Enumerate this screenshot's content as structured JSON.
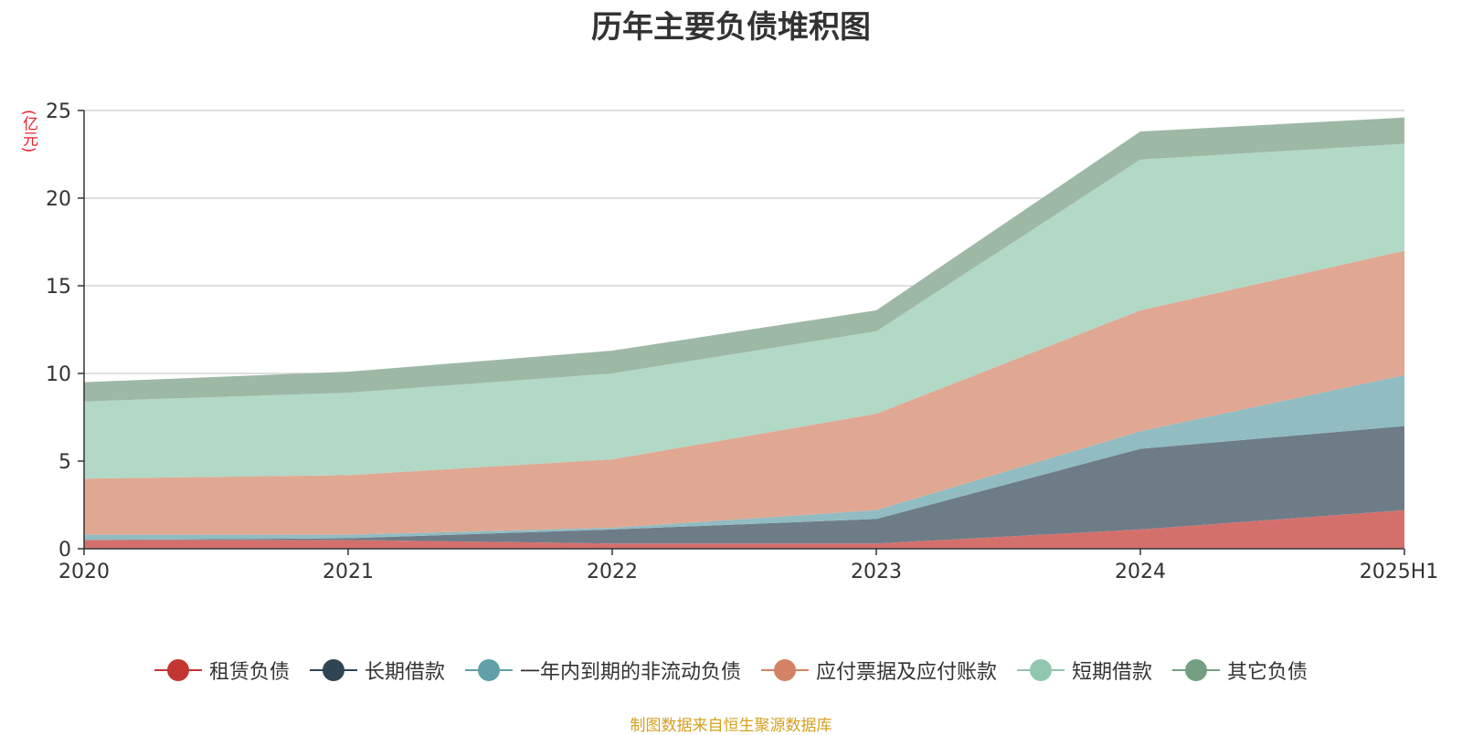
{
  "title": "历年主要负债堆积图",
  "unit": "(亿元)",
  "source": "制图数据来自恒生聚源数据库",
  "chart_data": {
    "type": "area",
    "stacked": true,
    "categories": [
      "2020",
      "2021",
      "2022",
      "2023",
      "2024",
      "2025H1"
    ],
    "ylim": [
      0,
      25
    ],
    "yticks": [
      "0",
      "5",
      "10",
      "15",
      "20",
      "25"
    ],
    "grid": true,
    "legend_position": "bottom",
    "series": [
      {
        "name": "租赁负债",
        "color": "#c23531",
        "fill": "#d4706c",
        "values": [
          0.5,
          0.5,
          0.3,
          0.3,
          1.1,
          2.2
        ]
      },
      {
        "name": "长期借款",
        "color": "#2f4554",
        "fill": "#6e7c87",
        "values": [
          0.0,
          0.1,
          0.8,
          1.4,
          4.6,
          4.8
        ]
      },
      {
        "name": "一年内到期的非流动负债",
        "color": "#61a0a8",
        "fill": "#90bcc2",
        "values": [
          0.3,
          0.2,
          0.1,
          0.5,
          1.0,
          2.9
        ]
      },
      {
        "name": "应付票据及应付账款",
        "color": "#d48265",
        "fill": "#e0a893",
        "values": [
          3.2,
          3.4,
          3.9,
          5.5,
          6.9,
          7.1
        ]
      },
      {
        "name": "短期借款",
        "color": "#91c7ae",
        "fill": "#b2d8c6",
        "values": [
          4.4,
          4.7,
          4.9,
          4.7,
          8.6,
          6.1
        ]
      },
      {
        "name": "其它负债",
        "color": "#749f83",
        "fill": "#9eb8a6",
        "values": [
          1.1,
          1.2,
          1.3,
          1.2,
          1.6,
          1.5
        ]
      }
    ]
  }
}
